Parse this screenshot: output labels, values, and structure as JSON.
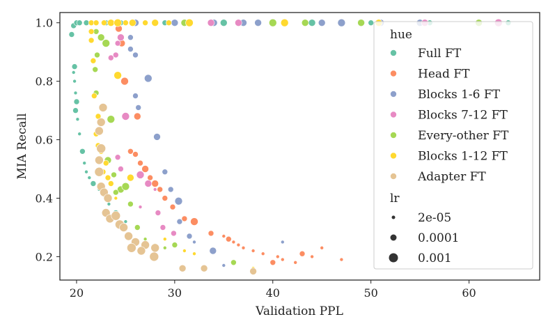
{
  "chart_data": {
    "type": "scatter",
    "title": "",
    "xlabel": "Validation PPL",
    "ylabel": "MIA Recall",
    "xlim": [
      18.3,
      67.2
    ],
    "ylim": [
      0.12,
      1.035
    ],
    "xticks": [
      "20",
      "30",
      "40",
      "50",
      "60"
    ],
    "xtick_values": [
      20,
      30,
      40,
      50,
      60
    ],
    "yticks": [
      "0.2",
      "0.4",
      "0.6",
      "0.8",
      "1.0"
    ],
    "ytick_values": [
      0.2,
      0.4,
      0.6,
      0.8,
      1.0
    ],
    "grid": false,
    "legend": {
      "position": "right",
      "hue_title": "hue",
      "size_title": "lr",
      "sizes": [
        {
          "label": "2e-05",
          "size": 2.5
        },
        {
          "label": "0.0001",
          "size": 4.5
        },
        {
          "label": "0.001",
          "size": 6.5
        }
      ]
    },
    "series": [
      {
        "name": "Full FT",
        "color": "#66c2a5",
        "points": [
          {
            "x": 19.5,
            "y": 0.96,
            "s": 4
          },
          {
            "x": 19.7,
            "y": 0.99,
            "s": 4
          },
          {
            "x": 20.0,
            "y": 1.0,
            "s": 4
          },
          {
            "x": 20.3,
            "y": 1.0,
            "s": 4
          },
          {
            "x": 21.0,
            "y": 1.0,
            "s": 4
          },
          {
            "x": 22.0,
            "y": 1.0,
            "s": 4
          },
          {
            "x": 23.0,
            "y": 1.0,
            "s": 4
          },
          {
            "x": 24.5,
            "y": 1.0,
            "s": 4
          },
          {
            "x": 26.0,
            "y": 1.0,
            "s": 4
          },
          {
            "x": 29.0,
            "y": 1.0,
            "s": 4
          },
          {
            "x": 35.0,
            "y": 1.0,
            "s": 5
          },
          {
            "x": 44.0,
            "y": 1.0,
            "s": 5
          },
          {
            "x": 50.0,
            "y": 1.0,
            "s": 4
          },
          {
            "x": 56.0,
            "y": 1.0,
            "s": 4
          },
          {
            "x": 61.0,
            "y": 1.0,
            "s": 4
          },
          {
            "x": 64.0,
            "y": 1.0,
            "s": 4
          },
          {
            "x": 19.8,
            "y": 0.85,
            "s": 4
          },
          {
            "x": 19.7,
            "y": 0.83,
            "s": 2.5
          },
          {
            "x": 19.8,
            "y": 0.8,
            "s": 2.5
          },
          {
            "x": 19.9,
            "y": 0.76,
            "s": 2.5
          },
          {
            "x": 20.0,
            "y": 0.73,
            "s": 4
          },
          {
            "x": 19.9,
            "y": 0.7,
            "s": 4
          },
          {
            "x": 20.1,
            "y": 0.67,
            "s": 2.5
          },
          {
            "x": 20.3,
            "y": 0.62,
            "s": 2.5
          },
          {
            "x": 20.6,
            "y": 0.56,
            "s": 4
          },
          {
            "x": 20.8,
            "y": 0.52,
            "s": 2.5
          },
          {
            "x": 21.0,
            "y": 0.49,
            "s": 2.5
          },
          {
            "x": 21.3,
            "y": 0.47,
            "s": 2.5
          },
          {
            "x": 21.7,
            "y": 0.45,
            "s": 4
          },
          {
            "x": 22.3,
            "y": 0.43,
            "s": 2.5
          },
          {
            "x": 22.8,
            "y": 0.41,
            "s": 2.5
          },
          {
            "x": 23.3,
            "y": 0.38,
            "s": 2.5
          },
          {
            "x": 24.0,
            "y": 0.35,
            "s": 4
          },
          {
            "x": 25.0,
            "y": 0.32,
            "s": 2.5
          }
        ]
      },
      {
        "name": "Head FT",
        "color": "#fc8d62",
        "points": [
          {
            "x": 24.3,
            "y": 0.98,
            "s": 5
          },
          {
            "x": 24.6,
            "y": 0.93,
            "s": 5
          },
          {
            "x": 24.9,
            "y": 0.8,
            "s": 5.5
          },
          {
            "x": 26.2,
            "y": 0.68,
            "s": 5
          },
          {
            "x": 25.5,
            "y": 0.56,
            "s": 4
          },
          {
            "x": 26.0,
            "y": 0.55,
            "s": 4
          },
          {
            "x": 26.5,
            "y": 0.52,
            "s": 4
          },
          {
            "x": 27.0,
            "y": 0.5,
            "s": 5
          },
          {
            "x": 27.5,
            "y": 0.47,
            "s": 4
          },
          {
            "x": 28.0,
            "y": 0.45,
            "s": 5
          },
          {
            "x": 28.5,
            "y": 0.43,
            "s": 4
          },
          {
            "x": 29.0,
            "y": 0.4,
            "s": 4
          },
          {
            "x": 29.8,
            "y": 0.37,
            "s": 4
          },
          {
            "x": 31.0,
            "y": 0.33,
            "s": 4
          },
          {
            "x": 32.0,
            "y": 0.32,
            "s": 5.5
          },
          {
            "x": 33.7,
            "y": 0.28,
            "s": 4
          },
          {
            "x": 35.0,
            "y": 0.27,
            "s": 2.5
          },
          {
            "x": 35.5,
            "y": 0.26,
            "s": 4
          },
          {
            "x": 36.0,
            "y": 0.25,
            "s": 2.5
          },
          {
            "x": 36.5,
            "y": 0.24,
            "s": 2.5
          },
          {
            "x": 37.0,
            "y": 0.23,
            "s": 2.5
          },
          {
            "x": 38.0,
            "y": 0.22,
            "s": 2.5
          },
          {
            "x": 39.0,
            "y": 0.21,
            "s": 2.5
          },
          {
            "x": 40.0,
            "y": 0.18,
            "s": 4
          },
          {
            "x": 40.5,
            "y": 0.2,
            "s": 2.5
          },
          {
            "x": 41.0,
            "y": 0.19,
            "s": 2.5
          },
          {
            "x": 42.3,
            "y": 0.18,
            "s": 2.5
          },
          {
            "x": 43.0,
            "y": 0.21,
            "s": 4
          },
          {
            "x": 44.0,
            "y": 0.2,
            "s": 2.5
          },
          {
            "x": 45.0,
            "y": 0.23,
            "s": 2.5
          },
          {
            "x": 47.0,
            "y": 0.19,
            "s": 2.5
          }
        ]
      },
      {
        "name": "Blocks 1-6 FT",
        "color": "#8da0cb",
        "points": [
          {
            "x": 25.5,
            "y": 0.95,
            "s": 4
          },
          {
            "x": 25.5,
            "y": 0.91,
            "s": 4
          },
          {
            "x": 26.0,
            "y": 0.89,
            "s": 4
          },
          {
            "x": 27.3,
            "y": 0.81,
            "s": 5.5
          },
          {
            "x": 26.0,
            "y": 0.75,
            "s": 4
          },
          {
            "x": 26.3,
            "y": 0.71,
            "s": 4
          },
          {
            "x": 28.2,
            "y": 0.61,
            "s": 5
          },
          {
            "x": 29.0,
            "y": 0.49,
            "s": 4
          },
          {
            "x": 29.6,
            "y": 0.43,
            "s": 4
          },
          {
            "x": 30.4,
            "y": 0.39,
            "s": 5.5
          },
          {
            "x": 30.5,
            "y": 0.32,
            "s": 4
          },
          {
            "x": 31.5,
            "y": 0.27,
            "s": 4
          },
          {
            "x": 32.0,
            "y": 0.25,
            "s": 2.5
          },
          {
            "x": 33.9,
            "y": 0.22,
            "s": 5
          },
          {
            "x": 35.0,
            "y": 0.17,
            "s": 2.5
          },
          {
            "x": 41.0,
            "y": 0.25,
            "s": 2.5
          },
          {
            "x": 26.0,
            "y": 1.0,
            "s": 5
          },
          {
            "x": 30.0,
            "y": 1.0,
            "s": 5
          },
          {
            "x": 34.0,
            "y": 1.0,
            "s": 5
          },
          {
            "x": 37.0,
            "y": 1.0,
            "s": 5
          },
          {
            "x": 38.5,
            "y": 1.0,
            "s": 5
          },
          {
            "x": 45.0,
            "y": 1.0,
            "s": 5
          },
          {
            "x": 47.0,
            "y": 1.0,
            "s": 5.5
          },
          {
            "x": 49.0,
            "y": 1.0,
            "s": 5.5
          },
          {
            "x": 51.0,
            "y": 1.0,
            "s": 5
          },
          {
            "x": 55.0,
            "y": 1.0,
            "s": 5
          }
        ]
      },
      {
        "name": "Blocks 7-12 FT",
        "color": "#e78ac3",
        "points": [
          {
            "x": 24.5,
            "y": 0.95,
            "s": 5
          },
          {
            "x": 24.0,
            "y": 0.89,
            "s": 4
          },
          {
            "x": 23.5,
            "y": 0.88,
            "s": 4
          },
          {
            "x": 24.2,
            "y": 0.93,
            "s": 4
          },
          {
            "x": 25.0,
            "y": 0.68,
            "s": 5.5
          },
          {
            "x": 24.2,
            "y": 0.54,
            "s": 4
          },
          {
            "x": 24.5,
            "y": 0.5,
            "s": 4
          },
          {
            "x": 26.5,
            "y": 0.48,
            "s": 5.5
          },
          {
            "x": 27.3,
            "y": 0.45,
            "s": 5
          },
          {
            "x": 28.3,
            "y": 0.35,
            "s": 4
          },
          {
            "x": 28.8,
            "y": 0.3,
            "s": 4
          },
          {
            "x": 29.9,
            "y": 0.28,
            "s": 4
          },
          {
            "x": 26.5,
            "y": 0.37,
            "s": 2.5
          },
          {
            "x": 28.0,
            "y": 0.43,
            "s": 2.5
          },
          {
            "x": 33.7,
            "y": 1.0,
            "s": 5
          },
          {
            "x": 36.5,
            "y": 1.0,
            "s": 5
          },
          {
            "x": 55.5,
            "y": 1.0,
            "s": 5
          },
          {
            "x": 63.0,
            "y": 1.0,
            "s": 5.5
          }
        ]
      },
      {
        "name": "Every-other FT",
        "color": "#a6d854",
        "points": [
          {
            "x": 22.0,
            "y": 0.97,
            "s": 4
          },
          {
            "x": 22.5,
            "y": 0.95,
            "s": 5
          },
          {
            "x": 23.0,
            "y": 0.93,
            "s": 5.5
          },
          {
            "x": 22.1,
            "y": 0.89,
            "s": 4
          },
          {
            "x": 21.9,
            "y": 0.84,
            "s": 4
          },
          {
            "x": 22.0,
            "y": 0.76,
            "s": 4
          },
          {
            "x": 23.5,
            "y": 0.67,
            "s": 5.5
          },
          {
            "x": 23.2,
            "y": 0.53,
            "s": 5
          },
          {
            "x": 23.8,
            "y": 0.48,
            "s": 4
          },
          {
            "x": 24.5,
            "y": 0.43,
            "s": 5
          },
          {
            "x": 25.0,
            "y": 0.44,
            "s": 5.5
          },
          {
            "x": 24.0,
            "y": 0.42,
            "s": 4
          },
          {
            "x": 25.5,
            "y": 0.38,
            "s": 4
          },
          {
            "x": 26.2,
            "y": 0.3,
            "s": 4
          },
          {
            "x": 27.0,
            "y": 0.26,
            "s": 2.5
          },
          {
            "x": 28.0,
            "y": 0.24,
            "s": 2.5
          },
          {
            "x": 29.0,
            "y": 0.23,
            "s": 2.5
          },
          {
            "x": 30.0,
            "y": 0.24,
            "s": 4
          },
          {
            "x": 36.0,
            "y": 0.18,
            "s": 4
          },
          {
            "x": 31.0,
            "y": 1.0,
            "s": 5
          },
          {
            "x": 40.0,
            "y": 1.0,
            "s": 5.5
          },
          {
            "x": 43.3,
            "y": 1.0,
            "s": 5
          },
          {
            "x": 49.0,
            "y": 1.0,
            "s": 5
          },
          {
            "x": 61.0,
            "y": 1.0,
            "s": 5
          }
        ]
      },
      {
        "name": "Blocks 1-12 FT",
        "color": "#ffd92f",
        "points": [
          {
            "x": 21.5,
            "y": 0.97,
            "s": 4
          },
          {
            "x": 21.5,
            "y": 0.94,
            "s": 4
          },
          {
            "x": 21.7,
            "y": 0.87,
            "s": 4
          },
          {
            "x": 24.2,
            "y": 0.82,
            "s": 5.5
          },
          {
            "x": 21.8,
            "y": 0.75,
            "s": 4
          },
          {
            "x": 22.2,
            "y": 0.68,
            "s": 4
          },
          {
            "x": 22.0,
            "y": 0.62,
            "s": 4
          },
          {
            "x": 22.2,
            "y": 0.58,
            "s": 4
          },
          {
            "x": 22.5,
            "y": 0.56,
            "s": 4
          },
          {
            "x": 23.0,
            "y": 0.52,
            "s": 4
          },
          {
            "x": 22.7,
            "y": 0.49,
            "s": 4
          },
          {
            "x": 23.2,
            "y": 0.47,
            "s": 4
          },
          {
            "x": 23.5,
            "y": 0.45,
            "s": 4
          },
          {
            "x": 25.5,
            "y": 0.47,
            "s": 5
          },
          {
            "x": 24.0,
            "y": 0.4,
            "s": 2.5
          },
          {
            "x": 29.0,
            "y": 0.26,
            "s": 2.5
          },
          {
            "x": 31.0,
            "y": 0.22,
            "s": 2.5
          },
          {
            "x": 32.0,
            "y": 0.21,
            "s": 2.5
          },
          {
            "x": 38.0,
            "y": 0.16,
            "s": 2.5
          },
          {
            "x": 21.5,
            "y": 1.0,
            "s": 4
          },
          {
            "x": 22.0,
            "y": 1.0,
            "s": 4
          },
          {
            "x": 22.8,
            "y": 1.0,
            "s": 4
          },
          {
            "x": 23.5,
            "y": 1.0,
            "s": 5
          },
          {
            "x": 24.2,
            "y": 1.0,
            "s": 5.5
          },
          {
            "x": 25.0,
            "y": 1.0,
            "s": 4
          },
          {
            "x": 25.7,
            "y": 1.0,
            "s": 5
          },
          {
            "x": 27.0,
            "y": 1.0,
            "s": 4
          },
          {
            "x": 28.0,
            "y": 1.0,
            "s": 5
          },
          {
            "x": 29.4,
            "y": 1.0,
            "s": 4
          },
          {
            "x": 31.5,
            "y": 1.0,
            "s": 5.5
          },
          {
            "x": 41.2,
            "y": 1.0,
            "s": 5.5
          },
          {
            "x": 50.8,
            "y": 1.0,
            "s": 5
          }
        ]
      },
      {
        "name": "Adapter FT",
        "color": "#e5c494",
        "points": [
          {
            "x": 22.7,
            "y": 0.71,
            "s": 6
          },
          {
            "x": 22.5,
            "y": 0.66,
            "s": 6
          },
          {
            "x": 22.3,
            "y": 0.63,
            "s": 6
          },
          {
            "x": 22.5,
            "y": 0.57,
            "s": 6.5
          },
          {
            "x": 22.3,
            "y": 0.53,
            "s": 6
          },
          {
            "x": 22.3,
            "y": 0.49,
            "s": 6.5
          },
          {
            "x": 22.5,
            "y": 0.44,
            "s": 6
          },
          {
            "x": 22.8,
            "y": 0.42,
            "s": 6
          },
          {
            "x": 23.2,
            "y": 0.4,
            "s": 6
          },
          {
            "x": 23.0,
            "y": 0.35,
            "s": 6
          },
          {
            "x": 23.4,
            "y": 0.33,
            "s": 6
          },
          {
            "x": 24.0,
            "y": 0.34,
            "s": 6.5
          },
          {
            "x": 24.4,
            "y": 0.31,
            "s": 6.5
          },
          {
            "x": 24.8,
            "y": 0.3,
            "s": 6
          },
          {
            "x": 25.3,
            "y": 0.27,
            "s": 6
          },
          {
            "x": 26.0,
            "y": 0.25,
            "s": 6
          },
          {
            "x": 27.0,
            "y": 0.24,
            "s": 6
          },
          {
            "x": 28.0,
            "y": 0.23,
            "s": 6
          },
          {
            "x": 25.6,
            "y": 0.23,
            "s": 6.5
          },
          {
            "x": 26.6,
            "y": 0.22,
            "s": 6
          },
          {
            "x": 27.9,
            "y": 0.2,
            "s": 6.5
          },
          {
            "x": 30.8,
            "y": 0.16,
            "s": 5
          },
          {
            "x": 33.0,
            "y": 0.16,
            "s": 5
          },
          {
            "x": 38.0,
            "y": 0.15,
            "s": 5
          }
        ]
      }
    ]
  }
}
